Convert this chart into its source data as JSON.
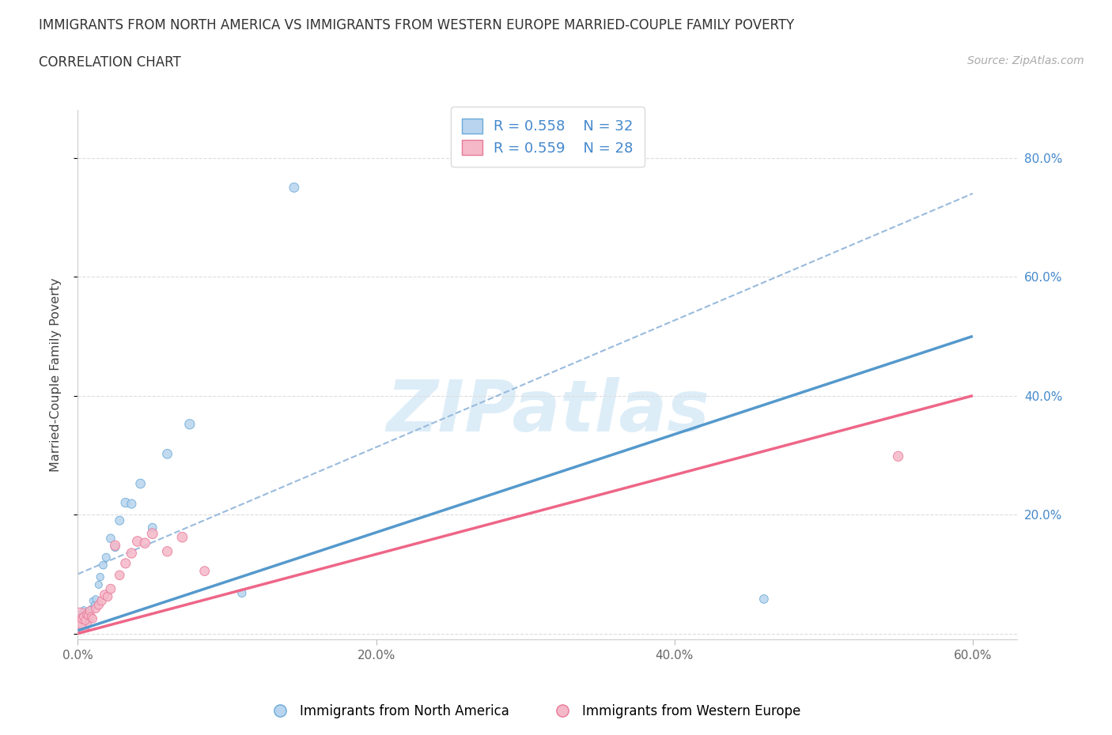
{
  "title_line1": "IMMIGRANTS FROM NORTH AMERICA VS IMMIGRANTS FROM WESTERN EUROPE MARRIED-COUPLE FAMILY POVERTY",
  "title_line2": "CORRELATION CHART",
  "source": "Source: ZipAtlas.com",
  "ylabel": "Married-Couple Family Poverty",
  "xlim": [
    0.0,
    0.63
  ],
  "ylim": [
    -0.01,
    0.88
  ],
  "xtick_labels": [
    "0.0%",
    "20.0%",
    "40.0%",
    "60.0%"
  ],
  "xtick_vals": [
    0.0,
    0.2,
    0.4,
    0.6
  ],
  "ytick_labels_right": [
    "80.0%",
    "60.0%",
    "40.0%",
    "20.0%"
  ],
  "ytick_vals": [
    0.0,
    0.2,
    0.4,
    0.6,
    0.8
  ],
  "color_blue_fill": "#B8D4EE",
  "color_pink_fill": "#F5B8C8",
  "color_blue_edge": "#6AAAD8",
  "color_pink_edge": "#E87898",
  "color_blue_line": "#5599CC",
  "color_pink_line": "#EE6688",
  "color_dashed": "#99BBDD",
  "legend_label1": "Immigrants from North America",
  "legend_label2": "Immigrants from Western Europe",
  "north_america_x": [
    0.001,
    0.002,
    0.002,
    0.003,
    0.003,
    0.004,
    0.004,
    0.005,
    0.005,
    0.006,
    0.007,
    0.008,
    0.009,
    0.01,
    0.011,
    0.012,
    0.014,
    0.015,
    0.017,
    0.019,
    0.022,
    0.025,
    0.028,
    0.032,
    0.036,
    0.042,
    0.05,
    0.06,
    0.075,
    0.11,
    0.145,
    0.46
  ],
  "north_america_y": [
    0.02,
    0.025,
    0.03,
    0.022,
    0.035,
    0.018,
    0.04,
    0.025,
    0.028,
    0.032,
    0.038,
    0.022,
    0.042,
    0.055,
    0.048,
    0.058,
    0.082,
    0.095,
    0.115,
    0.128,
    0.16,
    0.145,
    0.19,
    0.22,
    0.218,
    0.252,
    0.178,
    0.302,
    0.352,
    0.068,
    0.75,
    0.058
  ],
  "north_america_sizes": [
    40,
    38,
    35,
    32,
    35,
    30,
    32,
    28,
    30,
    32,
    30,
    28,
    32,
    35,
    32,
    38,
    42,
    45,
    50,
    52,
    58,
    55,
    62,
    68,
    65,
    70,
    60,
    72,
    78,
    55,
    72,
    60
  ],
  "western_europe_x": [
    0.001,
    0.002,
    0.003,
    0.004,
    0.005,
    0.006,
    0.007,
    0.008,
    0.009,
    0.01,
    0.012,
    0.014,
    0.016,
    0.018,
    0.02,
    0.022,
    0.025,
    0.028,
    0.032,
    0.036,
    0.04,
    0.045,
    0.05,
    0.06,
    0.07,
    0.085,
    0.55
  ],
  "western_europe_y": [
    0.022,
    0.018,
    0.025,
    0.028,
    0.022,
    0.032,
    0.03,
    0.038,
    0.028,
    0.025,
    0.042,
    0.048,
    0.055,
    0.065,
    0.062,
    0.075,
    0.148,
    0.098,
    0.118,
    0.135,
    0.155,
    0.152,
    0.168,
    0.138,
    0.162,
    0.105,
    0.298
  ],
  "western_europe_sizes": [
    520,
    110,
    75,
    62,
    58,
    55,
    58,
    60,
    55,
    58,
    62,
    65,
    68,
    72,
    68,
    72,
    78,
    70,
    75,
    78,
    82,
    80,
    85,
    78,
    82,
    72,
    78
  ],
  "blue_line_x": [
    0.0,
    0.6
  ],
  "blue_line_y": [
    0.005,
    0.5
  ],
  "pink_line_x": [
    0.0,
    0.6
  ],
  "pink_line_y": [
    0.0,
    0.4
  ],
  "dashed_line_x": [
    0.0,
    0.6
  ],
  "dashed_line_y": [
    0.1,
    0.74
  ],
  "text_color_blue": "#4488CC",
  "text_color_dark": "#333333",
  "text_color_grey": "#999999"
}
